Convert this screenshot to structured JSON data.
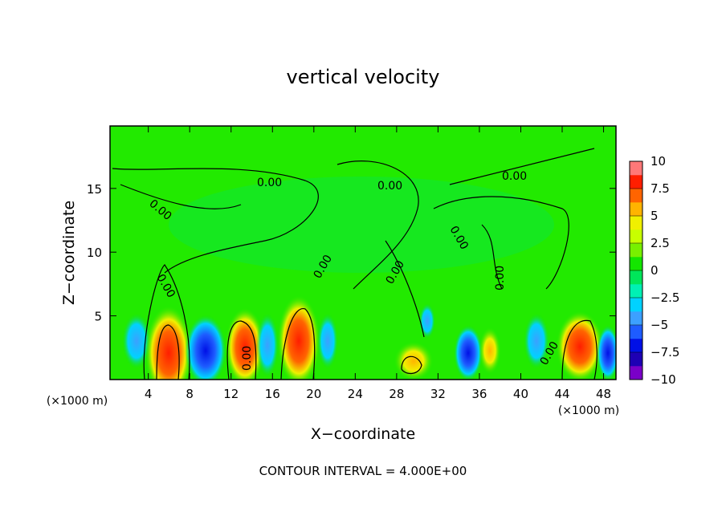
{
  "chart_data": {
    "type": "contour",
    "title": "vertical velocity",
    "xlabel": "X−coordinate",
    "ylabel": "Z−coordinate",
    "x_unit_label": "(×1000 m)",
    "footer": "CONTOUR INTERVAL = 4.000E+00",
    "contour_label": "0.00",
    "xlim": [
      0.3,
      49.2
    ],
    "xticks": [
      4,
      8,
      12,
      16,
      20,
      24,
      28,
      32,
      36,
      40,
      44,
      48
    ],
    "ylim": [
      0,
      19.9
    ],
    "yticks": [
      5,
      10,
      15
    ],
    "colorbar": {
      "lim": [
        -10,
        10
      ],
      "ticks": [
        10,
        7.5,
        5,
        2.5,
        0,
        {
          "value": -2.5,
          "label": "−2.5"
        },
        {
          "value": -5,
          "label": "−5"
        },
        {
          "value": -7.5,
          "label": "−7.5"
        },
        {
          "value": -10,
          "label": "−10"
        }
      ],
      "colors": [
        "#7a00c8",
        "#1e00b4",
        "#0010e6",
        "#1e5cff",
        "#3ca0ff",
        "#00d2ff",
        "#00f0b4",
        "#00e65a",
        "#14e600",
        "#78f000",
        "#c8ff00",
        "#f0f000",
        "#ffb400",
        "#ff6400",
        "#ff1e00",
        "#ff7878"
      ]
    }
  }
}
